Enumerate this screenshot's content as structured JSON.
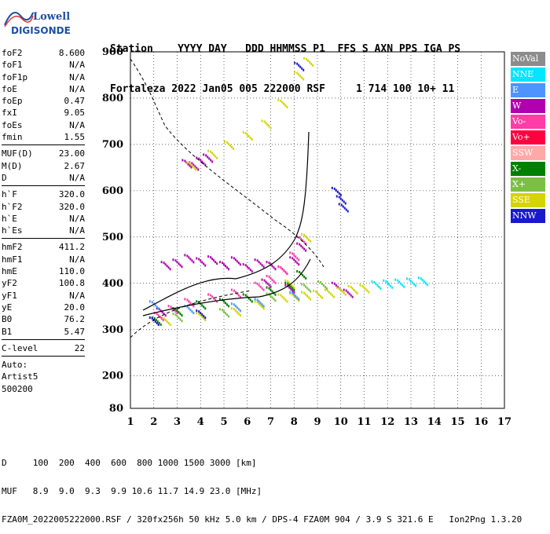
{
  "logo": {
    "line1": "Lowell",
    "line2": "DIGISONDE"
  },
  "header": {
    "line1": "Station    YYYY DAY   DDD HHMMSS P1  FFS S AXN PPS IGA PS",
    "line2": "Fortaleza 2022 Jan05 005 222000 RSF     1 714 100 10+ 11"
  },
  "params": {
    "group1": [
      {
        "label": "foF2",
        "value": "8.600"
      },
      {
        "label": "foF1",
        "value": "N/A"
      },
      {
        "label": "foF1p",
        "value": "N/A"
      },
      {
        "label": "foE",
        "value": "N/A"
      },
      {
        "label": "foEp",
        "value": "0.47"
      },
      {
        "label": "fxI",
        "value": "9.05"
      },
      {
        "label": "foEs",
        "value": "N/A"
      },
      {
        "label": "fmin",
        "value": "1.55"
      }
    ],
    "group2": [
      {
        "label": "MUF(D)",
        "value": "23.00"
      },
      {
        "label": "M(D)",
        "value": "2.67"
      },
      {
        "label": "D",
        "value": "N/A"
      }
    ],
    "group3": [
      {
        "label": "h`F",
        "value": "320.0"
      },
      {
        "label": "h`F2",
        "value": "320.0"
      },
      {
        "label": "h`E",
        "value": "N/A"
      },
      {
        "label": "h`Es",
        "value": "N/A"
      }
    ],
    "group4": [
      {
        "label": "hmF2",
        "value": "411.2"
      },
      {
        "label": "hmF1",
        "value": "N/A"
      },
      {
        "label": "hmE",
        "value": "110.0"
      },
      {
        "label": "yF2",
        "value": "100.8"
      },
      {
        "label": "yF1",
        "value": "N/A"
      },
      {
        "label": "yE",
        "value": "20.0"
      },
      {
        "label": "B0",
        "value": "76.2"
      },
      {
        "label": "B1",
        "value": "5.47"
      }
    ],
    "group5": [
      {
        "label": "C-level",
        "value": "22"
      }
    ],
    "auto": [
      "Auto:",
      "Artist5",
      "500200"
    ]
  },
  "legend": [
    {
      "label": "NoVal",
      "color": "#8c8c8c"
    },
    {
      "label": "NNE",
      "color": "#00e6ff"
    },
    {
      "label": "E",
      "color": "#4d94ff"
    },
    {
      "label": "W",
      "color": "#b000b0"
    },
    {
      "label": "Vo-",
      "color": "#ff3ca8"
    },
    {
      "label": "Vo+",
      "color": "#ff0040"
    },
    {
      "label": "SSW",
      "color": "#ffa8a8"
    },
    {
      "label": "X-",
      "color": "#008000"
    },
    {
      "label": "X+",
      "color": "#7bc043"
    },
    {
      "label": "SSE",
      "color": "#d4d400"
    },
    {
      "label": "NNW",
      "color": "#1a1acc"
    }
  ],
  "chart_data": {
    "type": "scatter",
    "xticks": [
      "1",
      "2",
      "3",
      "4",
      "5",
      "6",
      "7",
      "8",
      "9",
      "10",
      "11",
      "12",
      "13",
      "14",
      "15",
      "16",
      "17"
    ],
    "yticks": [
      "80",
      "200",
      "300",
      "400",
      "500",
      "600",
      "700",
      "800",
      "900"
    ],
    "xlim": [
      1,
      17
    ],
    "ylim_labels": [
      80,
      900
    ],
    "grid": true,
    "series": [
      {
        "name": "W",
        "color": "#b000b0",
        "points": [
          [
            3.4,
            660
          ],
          [
            3.7,
            655
          ],
          [
            4.0,
            665
          ],
          [
            4.3,
            672
          ],
          [
            2.5,
            440
          ],
          [
            3.0,
            445
          ],
          [
            3.5,
            455
          ],
          [
            4.0,
            448
          ],
          [
            4.5,
            452
          ],
          [
            5.0,
            440
          ],
          [
            5.5,
            450
          ],
          [
            6.0,
            435
          ],
          [
            6.5,
            445
          ],
          [
            7.0,
            440
          ],
          [
            7.5,
            430
          ],
          [
            8.0,
            450
          ],
          [
            8.3,
            480
          ],
          [
            7.8,
            390
          ],
          [
            2.3,
            340
          ],
          [
            6.8,
            402
          ],
          [
            9.8,
            395
          ],
          [
            10.3,
            380
          ]
        ]
      },
      {
        "name": "SSE",
        "color": "#d4d400",
        "points": [
          [
            3.6,
            655
          ],
          [
            4.5,
            680
          ],
          [
            5.2,
            700
          ],
          [
            6.0,
            720
          ],
          [
            6.8,
            745
          ],
          [
            7.5,
            790
          ],
          [
            8.2,
            850
          ],
          [
            8.6,
            880
          ],
          [
            7.5,
            370
          ],
          [
            8.0,
            372
          ],
          [
            8.5,
            375
          ],
          [
            9.0,
            378
          ],
          [
            9.5,
            380
          ],
          [
            10.0,
            385
          ],
          [
            10.5,
            388
          ],
          [
            11.0,
            390
          ],
          [
            2.5,
            320
          ],
          [
            4.0,
            330
          ],
          [
            5.5,
            340
          ],
          [
            6.5,
            355
          ],
          [
            7.8,
            400
          ],
          [
            8.5,
            500
          ]
        ]
      },
      {
        "name": "Vo-",
        "color": "#ff3ca8",
        "points": [
          [
            2.2,
            330
          ],
          [
            2.8,
            345
          ],
          [
            3.5,
            360
          ],
          [
            4.5,
            370
          ],
          [
            5.5,
            380
          ],
          [
            6.5,
            395
          ],
          [
            7.0,
            410
          ],
          [
            7.5,
            430
          ],
          [
            8.0,
            460
          ],
          [
            8.3,
            495
          ]
        ]
      },
      {
        "name": "X-",
        "color": "#008000",
        "points": [
          [
            2.1,
            320
          ],
          [
            3.0,
            340
          ],
          [
            4.0,
            355
          ],
          [
            5.0,
            360
          ],
          [
            6.0,
            370
          ],
          [
            7.0,
            385
          ],
          [
            7.8,
            395
          ],
          [
            8.3,
            420
          ]
        ]
      },
      {
        "name": "E",
        "color": "#4d94ff",
        "points": [
          [
            2.0,
            355
          ],
          [
            3.5,
            345
          ],
          [
            5.5,
            350
          ],
          [
            6.5,
            360
          ],
          [
            8.0,
            375
          ]
        ]
      },
      {
        "name": "NNE",
        "color": "#00e6ff",
        "points": [
          [
            11.5,
            398
          ],
          [
            12.0,
            400
          ],
          [
            12.5,
            402
          ],
          [
            13.0,
            404
          ],
          [
            13.5,
            406
          ]
        ]
      },
      {
        "name": "NNW",
        "color": "#1a1acc",
        "points": [
          [
            8.2,
            870
          ],
          [
            9.8,
            600
          ],
          [
            10.0,
            582
          ],
          [
            10.1,
            565
          ],
          [
            2.0,
            320
          ],
          [
            4.0,
            335
          ]
        ]
      },
      {
        "name": "X+",
        "color": "#7bc043",
        "points": [
          [
            3.0,
            328
          ],
          [
            5.0,
            338
          ],
          [
            7.0,
            372
          ],
          [
            8.5,
            392
          ],
          [
            9.2,
            398
          ]
        ]
      }
    ]
  },
  "footer": {
    "line1": "D     100  200  400  600  800 1000 1500 3000 [km]",
    "line2": "MUF   8.9  9.0  9.3  9.9 10.6 11.7 14.9 23.0 [MHz]",
    "line3": "FZA0M_2022005222000.RSF / 320fx256h 50 kHz 5.0 km / DPS-4 FZA0M 904 / 3.9 S 321.6 E   Ion2Png 1.3.20"
  }
}
